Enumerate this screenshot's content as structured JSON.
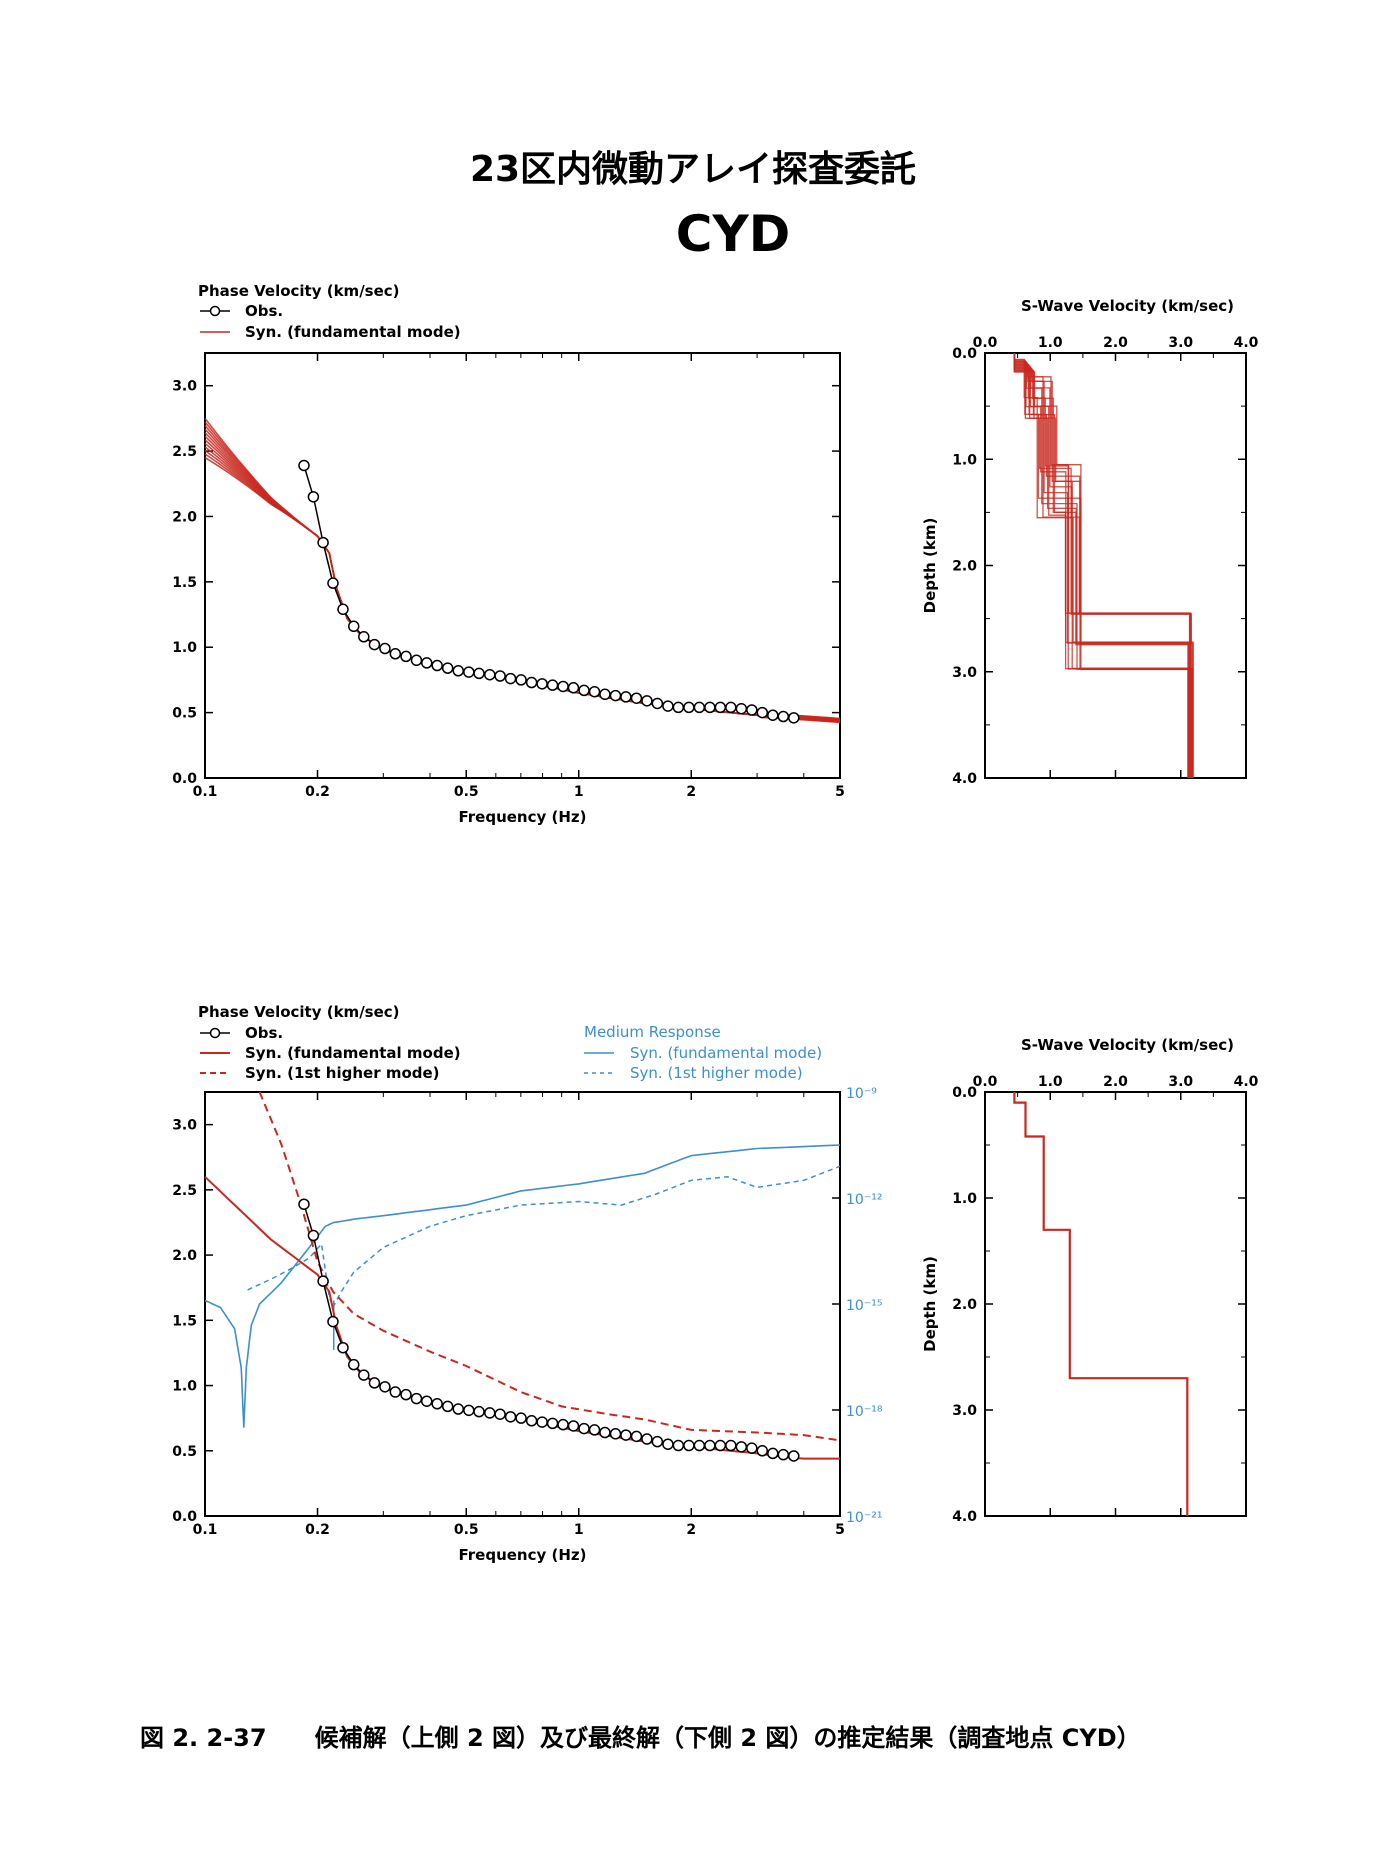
{
  "header": {
    "title": "23区内微動アレイ探査委託",
    "site": "CYD"
  },
  "caption": "図 2. 2-37　　候補解（上側 2 図）及び最終解（下側 2 図）の推定結果（調査地点 CYD）",
  "colors": {
    "red": "#c8281e",
    "blue": "#3c8fd0",
    "black": "#000000"
  },
  "chart_data": [
    {
      "id": "top-dispersion",
      "type": "line",
      "legend": {
        "title": "Phase Velocity (km/sec)",
        "obs": "Obs.",
        "syn_fund": "Syn. (fundamental mode)"
      },
      "xlabel": "Frequency (Hz)",
      "xscale": "log",
      "xlim": [
        0.1,
        5
      ],
      "ylim": [
        0,
        3.25
      ],
      "xticks": [
        {
          "v": 0.1,
          "t": "0.1"
        },
        {
          "v": 0.2,
          "t": "0.2"
        },
        {
          "v": 0.5,
          "t": "0.5"
        },
        {
          "v": 1,
          "t": "1"
        },
        {
          "v": 2,
          "t": "2"
        },
        {
          "v": 5,
          "t": "5"
        }
      ],
      "yticks": [
        {
          "v": 0,
          "t": "0.0"
        },
        {
          "v": 0.5,
          "t": "0.5"
        },
        {
          "v": 1,
          "t": "1.0"
        },
        {
          "v": 1.5,
          "t": "1.5"
        },
        {
          "v": 2,
          "t": "2.0"
        },
        {
          "v": 2.5,
          "t": "2.5"
        },
        {
          "v": 3,
          "t": "3.0"
        }
      ],
      "obs": [
        [
          0.184,
          2.39
        ],
        [
          0.195,
          2.15
        ],
        [
          0.207,
          1.8
        ],
        [
          0.22,
          1.49
        ],
        [
          0.234,
          1.29
        ],
        [
          0.25,
          1.16
        ],
        [
          0.266,
          1.08
        ],
        [
          0.284,
          1.02
        ],
        [
          0.303,
          0.99
        ],
        [
          0.323,
          0.95
        ],
        [
          0.345,
          0.93
        ],
        [
          0.368,
          0.9
        ],
        [
          0.392,
          0.88
        ],
        [
          0.418,
          0.86
        ],
        [
          0.446,
          0.84
        ],
        [
          0.476,
          0.82
        ],
        [
          0.508,
          0.81
        ],
        [
          0.541,
          0.8
        ],
        [
          0.578,
          0.79
        ],
        [
          0.616,
          0.78
        ],
        [
          0.657,
          0.76
        ],
        [
          0.701,
          0.75
        ],
        [
          0.748,
          0.73
        ],
        [
          0.798,
          0.72
        ],
        [
          0.851,
          0.71
        ],
        [
          0.908,
          0.7
        ],
        [
          0.968,
          0.69
        ],
        [
          1.033,
          0.67
        ],
        [
          1.102,
          0.66
        ],
        [
          1.175,
          0.64
        ],
        [
          1.254,
          0.63
        ],
        [
          1.337,
          0.62
        ],
        [
          1.427,
          0.61
        ],
        [
          1.522,
          0.59
        ],
        [
          1.623,
          0.57
        ],
        [
          1.732,
          0.55
        ],
        [
          1.847,
          0.54
        ],
        [
          1.971,
          0.54
        ],
        [
          2.102,
          0.54
        ],
        [
          2.243,
          0.54
        ],
        [
          2.392,
          0.54
        ],
        [
          2.552,
          0.54
        ],
        [
          2.723,
          0.53
        ],
        [
          2.904,
          0.52
        ],
        [
          3.098,
          0.5
        ],
        [
          3.305,
          0.48
        ],
        [
          3.526,
          0.47
        ],
        [
          3.761,
          0.46
        ]
      ],
      "syn_base": [
        [
          0.1,
          2.6
        ],
        [
          0.15,
          2.12
        ],
        [
          0.2,
          1.85
        ],
        [
          0.215,
          1.72
        ],
        [
          0.225,
          1.45
        ],
        [
          0.24,
          1.22
        ],
        [
          0.26,
          1.1
        ],
        [
          0.3,
          0.98
        ],
        [
          0.4,
          0.87
        ],
        [
          0.5,
          0.81
        ],
        [
          0.7,
          0.74
        ],
        [
          1,
          0.65
        ],
        [
          1.5,
          0.57
        ],
        [
          2,
          0.53
        ],
        [
          3,
          0.48
        ],
        [
          4,
          0.46
        ],
        [
          5,
          0.44
        ]
      ],
      "syn_spread_left": [
        -0.15,
        0.15
      ]
    },
    {
      "id": "top-vs-profile",
      "type": "line",
      "title": "S-Wave Velocity (km/sec)",
      "ylabel": "Depth (km)",
      "xlim": [
        0,
        4
      ],
      "ylim": [
        0,
        4
      ],
      "xticks": [
        {
          "v": 0,
          "t": "0.0"
        },
        {
          "v": 1,
          "t": "1.0"
        },
        {
          "v": 2,
          "t": "2.0"
        },
        {
          "v": 3,
          "t": "3.0"
        },
        {
          "v": 4,
          "t": "4.0"
        }
      ],
      "yticks": [
        {
          "v": 0,
          "t": "0.0"
        },
        {
          "v": 1,
          "t": "1.0"
        },
        {
          "v": 2,
          "t": "2.0"
        },
        {
          "v": 3,
          "t": "3.0"
        },
        {
          "v": 4,
          "t": "4.0"
        }
      ],
      "profile": [
        [
          0.45,
          0.0
        ],
        [
          0.45,
          0.12
        ],
        [
          0.68,
          0.12
        ],
        [
          0.68,
          0.42
        ],
        [
          0.95,
          0.42
        ],
        [
          0.95,
          1.3
        ],
        [
          1.35,
          1.3
        ],
        [
          1.35,
          2.72
        ],
        [
          3.15,
          2.72
        ],
        [
          3.15,
          4.0
        ]
      ]
    },
    {
      "id": "bottom-dispersion",
      "type": "line",
      "legend": {
        "title": "Phase Velocity (km/sec)",
        "obs": "Obs.",
        "syn_fund": "Syn. (fundamental mode)",
        "syn_higher": "Syn. (1st higher mode)",
        "medium_title": "Medium Response",
        "med_fund": "Syn. (fundamental mode)",
        "med_higher": "Syn. (1st higher mode)"
      },
      "xlabel": "Frequency (Hz)",
      "xscale": "log",
      "xlim": [
        0.1,
        5
      ],
      "ylim": [
        0,
        3.25
      ],
      "xticks": [
        {
          "v": 0.1,
          "t": "0.1"
        },
        {
          "v": 0.2,
          "t": "0.2"
        },
        {
          "v": 0.5,
          "t": "0.5"
        },
        {
          "v": 1,
          "t": "1"
        },
        {
          "v": 2,
          "t": "2"
        },
        {
          "v": 5,
          "t": "5"
        }
      ],
      "yticks": [
        {
          "v": 0,
          "t": "0.0"
        },
        {
          "v": 0.5,
          "t": "0.5"
        },
        {
          "v": 1,
          "t": "1.0"
        },
        {
          "v": 1.5,
          "t": "1.5"
        },
        {
          "v": 2,
          "t": "2.0"
        },
        {
          "v": 2.5,
          "t": "2.5"
        },
        {
          "v": 3,
          "t": "3.0"
        }
      ],
      "y2scale": "log",
      "y2lim": [
        1e-21,
        1e-09
      ],
      "y2ticks": [
        {
          "e": -9,
          "t": "10⁻⁹"
        },
        {
          "e": -12,
          "t": "10⁻¹²"
        },
        {
          "e": -15,
          "t": "10⁻¹⁵"
        },
        {
          "e": -18,
          "t": "10⁻¹⁸"
        },
        {
          "e": -21,
          "t": "10⁻²¹"
        }
      ],
      "syn_fund": [
        [
          0.1,
          2.6
        ],
        [
          0.15,
          2.12
        ],
        [
          0.2,
          1.85
        ],
        [
          0.215,
          1.72
        ],
        [
          0.225,
          1.45
        ],
        [
          0.24,
          1.22
        ],
        [
          0.26,
          1.1
        ],
        [
          0.3,
          0.98
        ],
        [
          0.4,
          0.87
        ],
        [
          0.5,
          0.81
        ],
        [
          0.7,
          0.74
        ],
        [
          1,
          0.65
        ],
        [
          1.5,
          0.57
        ],
        [
          2,
          0.53
        ],
        [
          3,
          0.48
        ],
        [
          3.6,
          0.45
        ],
        [
          4,
          0.44
        ],
        [
          5,
          0.44
        ]
      ],
      "syn_higher": [
        [
          0.14,
          3.25
        ],
        [
          0.16,
          2.85
        ],
        [
          0.18,
          2.4
        ],
        [
          0.2,
          1.95
        ],
        [
          0.22,
          1.72
        ],
        [
          0.25,
          1.55
        ],
        [
          0.3,
          1.42
        ],
        [
          0.4,
          1.26
        ],
        [
          0.5,
          1.15
        ],
        [
          0.7,
          0.95
        ],
        [
          0.9,
          0.84
        ],
        [
          1.2,
          0.78
        ],
        [
          1.5,
          0.74
        ],
        [
          2,
          0.66
        ],
        [
          3,
          0.64
        ],
        [
          4,
          0.62
        ],
        [
          5,
          0.58
        ]
      ],
      "med_fund_exp": [
        [
          0.1,
          -14.9
        ],
        [
          0.11,
          -15.1
        ],
        [
          0.12,
          -15.7
        ],
        [
          0.125,
          -16.8
        ],
        [
          0.127,
          -18.5
        ],
        [
          0.129,
          -16.8
        ],
        [
          0.133,
          -15.6
        ],
        [
          0.14,
          -15
        ],
        [
          0.16,
          -14.4
        ],
        [
          0.19,
          -13.4
        ],
        [
          0.21,
          -12.8
        ],
        [
          0.22,
          -12.7
        ],
        [
          0.25,
          -12.6
        ],
        [
          0.3,
          -12.5
        ],
        [
          0.5,
          -12.2
        ],
        [
          0.7,
          -11.8
        ],
        [
          1,
          -11.6
        ],
        [
          1.5,
          -11.3
        ],
        [
          2,
          -10.8
        ],
        [
          3,
          -10.6
        ],
        [
          5,
          -10.5
        ]
      ],
      "med_higher_exp": [
        [
          0.13,
          -14.6
        ],
        [
          0.15,
          -14.3
        ],
        [
          0.17,
          -14
        ],
        [
          0.19,
          -13.7
        ],
        [
          0.205,
          -13.3
        ],
        [
          0.215,
          -14.8
        ],
        [
          0.22,
          -15.1
        ],
        [
          0.23,
          -14.7
        ],
        [
          0.25,
          -14.1
        ],
        [
          0.3,
          -13.4
        ],
        [
          0.4,
          -12.8
        ],
        [
          0.5,
          -12.5
        ],
        [
          0.7,
          -12.2
        ],
        [
          1,
          -12.1
        ],
        [
          1.3,
          -12.2
        ],
        [
          1.6,
          -11.9
        ],
        [
          2,
          -11.5
        ],
        [
          2.5,
          -11.4
        ],
        [
          3,
          -11.7
        ],
        [
          4,
          -11.5
        ],
        [
          5,
          -11.1
        ]
      ],
      "med_spike": {
        "x": 0.221,
        "lo": -16.3,
        "hi": -14.9
      },
      "obs": [
        [
          0.184,
          2.39
        ],
        [
          0.195,
          2.15
        ],
        [
          0.207,
          1.8
        ],
        [
          0.22,
          1.49
        ],
        [
          0.234,
          1.29
        ],
        [
          0.25,
          1.16
        ],
        [
          0.266,
          1.08
        ],
        [
          0.284,
          1.02
        ],
        [
          0.303,
          0.99
        ],
        [
          0.323,
          0.95
        ],
        [
          0.345,
          0.93
        ],
        [
          0.368,
          0.9
        ],
        [
          0.392,
          0.88
        ],
        [
          0.418,
          0.86
        ],
        [
          0.446,
          0.84
        ],
        [
          0.476,
          0.82
        ],
        [
          0.508,
          0.81
        ],
        [
          0.541,
          0.8
        ],
        [
          0.578,
          0.79
        ],
        [
          0.616,
          0.78
        ],
        [
          0.657,
          0.76
        ],
        [
          0.701,
          0.75
        ],
        [
          0.748,
          0.73
        ],
        [
          0.798,
          0.72
        ],
        [
          0.851,
          0.71
        ],
        [
          0.908,
          0.7
        ],
        [
          0.968,
          0.69
        ],
        [
          1.033,
          0.67
        ],
        [
          1.102,
          0.66
        ],
        [
          1.175,
          0.64
        ],
        [
          1.254,
          0.63
        ],
        [
          1.337,
          0.62
        ],
        [
          1.427,
          0.61
        ],
        [
          1.522,
          0.59
        ],
        [
          1.623,
          0.57
        ],
        [
          1.732,
          0.55
        ],
        [
          1.847,
          0.54
        ],
        [
          1.971,
          0.54
        ],
        [
          2.102,
          0.54
        ],
        [
          2.243,
          0.54
        ],
        [
          2.392,
          0.54
        ],
        [
          2.552,
          0.54
        ],
        [
          2.723,
          0.53
        ],
        [
          2.904,
          0.52
        ],
        [
          3.098,
          0.5
        ],
        [
          3.305,
          0.48
        ],
        [
          3.526,
          0.47
        ],
        [
          3.761,
          0.46
        ]
      ]
    },
    {
      "id": "bottom-vs-profile",
      "type": "line",
      "title": "S-Wave Velocity (km/sec)",
      "ylabel": "Depth (km)",
      "xlim": [
        0,
        4
      ],
      "ylim": [
        0,
        4
      ],
      "xticks": [
        {
          "v": 0,
          "t": "0.0"
        },
        {
          "v": 1,
          "t": "1.0"
        },
        {
          "v": 2,
          "t": "2.0"
        },
        {
          "v": 3,
          "t": "3.0"
        },
        {
          "v": 4,
          "t": "4.0"
        }
      ],
      "yticks": [
        {
          "v": 0,
          "t": "0.0"
        },
        {
          "v": 1,
          "t": "1.0"
        },
        {
          "v": 2,
          "t": "2.0"
        },
        {
          "v": 3,
          "t": "3.0"
        },
        {
          "v": 4,
          "t": "4.0"
        }
      ],
      "profile": [
        [
          0.45,
          0.0
        ],
        [
          0.45,
          0.1
        ],
        [
          0.62,
          0.1
        ],
        [
          0.62,
          0.42
        ],
        [
          0.9,
          0.42
        ],
        [
          0.9,
          1.3
        ],
        [
          1.3,
          1.3
        ],
        [
          1.3,
          2.7
        ],
        [
          3.1,
          2.7
        ],
        [
          3.1,
          4.0
        ]
      ]
    }
  ]
}
